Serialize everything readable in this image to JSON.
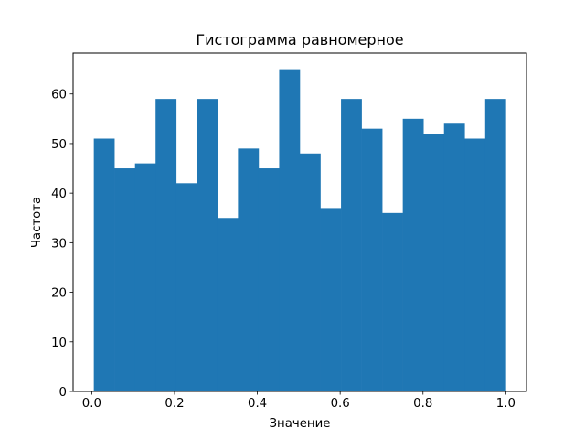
{
  "chart_data": {
    "type": "bar",
    "title": "Гистограмма равномерное",
    "xlabel": "Значение",
    "ylabel": "Частота",
    "bin_edges": [
      0.005,
      0.0547,
      0.1045,
      0.1542,
      0.204,
      0.2537,
      0.3035,
      0.3532,
      0.403,
      0.4527,
      0.5025,
      0.5522,
      0.602,
      0.6517,
      0.7015,
      0.7512,
      0.801,
      0.8507,
      0.9005,
      0.9502,
      1.0
    ],
    "values": [
      51,
      45,
      46,
      59,
      42,
      59,
      35,
      49,
      45,
      65,
      48,
      37,
      59,
      53,
      36,
      55,
      52,
      54,
      51,
      59
    ],
    "xlim": [
      -0.045,
      1.05
    ],
    "ylim": [
      0,
      68.25
    ],
    "xticks": [
      0.0,
      0.2,
      0.4,
      0.6,
      0.8,
      1.0
    ],
    "xtick_labels": [
      "0.0",
      "0.2",
      "0.4",
      "0.6",
      "0.8",
      "1.0"
    ],
    "yticks": [
      0,
      10,
      20,
      30,
      40,
      50,
      60
    ],
    "ytick_labels": [
      "0",
      "10",
      "20",
      "30",
      "40",
      "50",
      "60"
    ],
    "bar_color": "#1f77b4",
    "grid": false,
    "legend": "none"
  }
}
